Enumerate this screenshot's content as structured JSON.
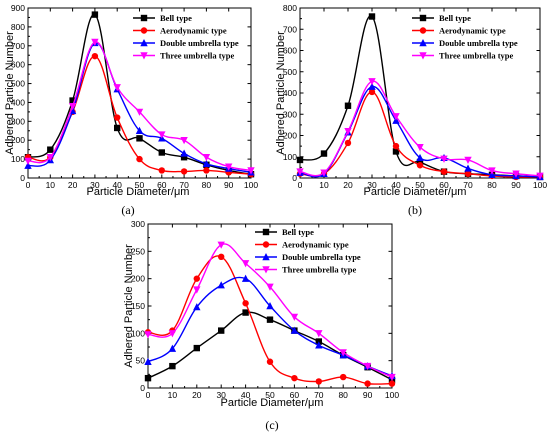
{
  "chart_data": [
    {
      "panel": "(a)",
      "type": "line",
      "xlabel": "Particle Diameter/μm",
      "ylabel": "Adhered Particle Number",
      "xlim": [
        0,
        100
      ],
      "ylim": [
        0,
        900
      ],
      "xticks": [
        0,
        10,
        20,
        30,
        40,
        50,
        60,
        70,
        80,
        90,
        100
      ],
      "yticks": [
        0,
        100,
        200,
        300,
        400,
        500,
        600,
        700,
        800,
        900
      ],
      "x": [
        0,
        10,
        20,
        30,
        40,
        50,
        60,
        70,
        80,
        90,
        100
      ],
      "legend_position": "top-right",
      "series": [
        {
          "name": "Bell type",
          "color": "#000000",
          "marker": "square",
          "values": [
            110,
            150,
            410,
            865,
            265,
            210,
            135,
            110,
            70,
            40,
            20
          ]
        },
        {
          "name": "Aerodynamic type",
          "color": "#ff0000",
          "marker": "circle",
          "values": [
            110,
            110,
            350,
            645,
            320,
            100,
            40,
            35,
            40,
            30,
            20
          ]
        },
        {
          "name": "Double umbrella type",
          "color": "#0000ff",
          "marker": "triangle-up",
          "values": [
            65,
            95,
            355,
            715,
            470,
            250,
            210,
            130,
            75,
            50,
            30
          ]
        },
        {
          "name": "Three umbrella type",
          "color": "#ff00ff",
          "marker": "triangle-down",
          "values": [
            90,
            110,
            380,
            720,
            480,
            350,
            230,
            200,
            110,
            60,
            40
          ]
        }
      ]
    },
    {
      "panel": "(b)",
      "type": "line",
      "xlabel": "Particle Diameter/μm",
      "ylabel": "Adhered Particle Number",
      "xlim": [
        0,
        100
      ],
      "ylim": [
        0,
        800
      ],
      "xticks": [
        0,
        10,
        20,
        30,
        40,
        50,
        60,
        70,
        80,
        90,
        100
      ],
      "yticks": [
        0,
        100,
        200,
        300,
        400,
        500,
        600,
        700,
        800
      ],
      "x": [
        0,
        10,
        20,
        30,
        40,
        50,
        60,
        70,
        80,
        90,
        100
      ],
      "legend_position": "top-right",
      "series": [
        {
          "name": "Bell type",
          "color": "#000000",
          "marker": "square",
          "values": [
            85,
            115,
            340,
            760,
            125,
            75,
            30,
            20,
            15,
            10,
            5
          ]
        },
        {
          "name": "Aerodynamic type",
          "color": "#ff0000",
          "marker": "circle",
          "values": [
            20,
            20,
            165,
            405,
            150,
            60,
            30,
            20,
            10,
            5,
            5
          ]
        },
        {
          "name": "Double umbrella type",
          "color": "#0000ff",
          "marker": "triangle-up",
          "values": [
            25,
            20,
            215,
            430,
            270,
            95,
            95,
            45,
            15,
            10,
            5
          ]
        },
        {
          "name": "Three umbrella type",
          "color": "#ff00ff",
          "marker": "triangle-down",
          "values": [
            30,
            25,
            220,
            455,
            290,
            145,
            90,
            85,
            35,
            20,
            10
          ]
        }
      ]
    },
    {
      "panel": "(c)",
      "type": "line",
      "xlabel": "Particle Diameter/μm",
      "ylabel": "Adhered Particle Number",
      "xlim": [
        0,
        100
      ],
      "ylim": [
        0,
        300
      ],
      "xticks": [
        0,
        10,
        20,
        30,
        40,
        50,
        60,
        70,
        80,
        90,
        100
      ],
      "yticks": [
        0,
        50,
        100,
        150,
        200,
        250,
        300
      ],
      "x": [
        0,
        10,
        20,
        30,
        40,
        50,
        60,
        70,
        80,
        90,
        100
      ],
      "legend_position": "top-right",
      "series": [
        {
          "name": "Bell type",
          "color": "#000000",
          "marker": "square",
          "values": [
            18,
            40,
            73,
            105,
            138,
            125,
            105,
            85,
            60,
            38,
            15
          ]
        },
        {
          "name": "Aerodynamic type",
          "color": "#ff0000",
          "marker": "circle",
          "values": [
            102,
            105,
            200,
            240,
            155,
            48,
            18,
            12,
            20,
            8,
            8
          ]
        },
        {
          "name": "Double umbrella type",
          "color": "#0000ff",
          "marker": "triangle-up",
          "values": [
            48,
            72,
            148,
            188,
            200,
            150,
            105,
            78,
            60,
            40,
            22
          ]
        },
        {
          "name": "Three umbrella type",
          "color": "#ff00ff",
          "marker": "triangle-down",
          "values": [
            98,
            100,
            180,
            262,
            228,
            185,
            130,
            100,
            65,
            40,
            20
          ]
        }
      ]
    }
  ]
}
